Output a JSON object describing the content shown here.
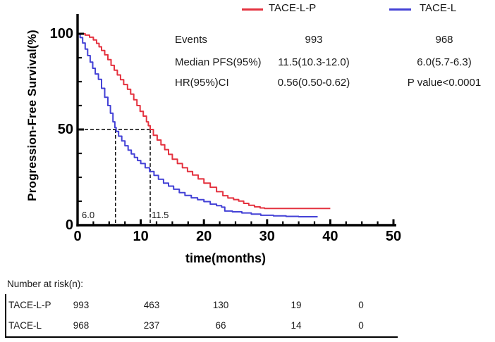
{
  "figure": {
    "background": "#ffffff"
  },
  "legend": {
    "items": [
      {
        "label": "TACE-L-P",
        "color": "#e4323f"
      },
      {
        "label": "TACE-L",
        "color": "#4341d6"
      }
    ]
  },
  "stats": {
    "rows": [
      {
        "label": "Events",
        "tace_l_p": "993",
        "tace_l": "968"
      },
      {
        "label": "Median PFS(95%)",
        "tace_l_p": "11.5(10.3-12.0)",
        "tace_l": "6.0(5.7-6.3)"
      },
      {
        "label": "HR(95%)CI",
        "tace_l_p": "0.56(0.50-0.62)",
        "tace_l": "P value<0.0001"
      }
    ]
  },
  "axes": {
    "xlabel": "time(months)",
    "ylabel": "Progression-Free Survival(%)",
    "xticks": [
      0,
      10,
      20,
      30,
      40,
      50
    ],
    "yticks": [
      0,
      50,
      100
    ],
    "x_minor_step": 2.5,
    "y_minor_step": 12.5,
    "xlim": [
      0,
      50
    ],
    "ylim": [
      0,
      100
    ]
  },
  "annotations": {
    "median_left": "6.0",
    "median_right": "11.5"
  },
  "risk_table": {
    "title": "Number at risk(n):",
    "rows": [
      {
        "label": "TACE-L-P",
        "values": [
          "993",
          "463",
          "130",
          "19",
          "0"
        ]
      },
      {
        "label": "TACE-L",
        "values": [
          "968",
          "237",
          "66",
          "14",
          "0"
        ]
      }
    ]
  },
  "chart_data": {
    "type": "line",
    "subtype": "kaplan-meier-step",
    "title": "",
    "xlabel": "time(months)",
    "ylabel": "Progression-Free Survival(%)",
    "xlim": [
      0,
      50
    ],
    "ylim": [
      0,
      100
    ],
    "xticks": [
      0,
      10,
      20,
      30,
      40,
      50
    ],
    "yticks": [
      0,
      50,
      100
    ],
    "grid": false,
    "legend_position": "top",
    "series": [
      {
        "name": "TACE-L-P",
        "color": "#e4323f",
        "events": 993,
        "median_pfs": "11.5(10.3-12.0)",
        "points": [
          [
            0,
            100
          ],
          [
            1.2,
            99.3
          ],
          [
            1.9,
            98.2
          ],
          [
            2.5,
            96.8
          ],
          [
            3,
            95
          ],
          [
            3.4,
            93.2
          ],
          [
            3.8,
            91.3
          ],
          [
            4.3,
            89
          ],
          [
            4.8,
            86.5
          ],
          [
            5.3,
            83.5
          ],
          [
            5.8,
            81
          ],
          [
            6.3,
            78.5
          ],
          [
            6.8,
            76
          ],
          [
            7.3,
            73.5
          ],
          [
            7.9,
            71
          ],
          [
            8.4,
            68.5
          ],
          [
            8.9,
            65.5
          ],
          [
            9.4,
            62.5
          ],
          [
            9.9,
            59.5
          ],
          [
            10.4,
            57
          ],
          [
            10.9,
            54
          ],
          [
            11.2,
            52
          ],
          [
            11.5,
            50
          ],
          [
            12,
            47
          ],
          [
            12.6,
            44.5
          ],
          [
            13.2,
            42
          ],
          [
            13.8,
            39.5
          ],
          [
            14.4,
            37
          ],
          [
            15,
            34.5
          ],
          [
            15.8,
            32.2
          ],
          [
            16.6,
            30
          ],
          [
            17.4,
            28
          ],
          [
            18.2,
            26.2
          ],
          [
            19.1,
            24.2
          ],
          [
            20,
            22
          ],
          [
            21,
            19.8
          ],
          [
            22,
            17.5
          ],
          [
            23,
            15.4
          ],
          [
            23.8,
            14.2
          ],
          [
            24.7,
            13.4
          ],
          [
            25.5,
            12.6
          ],
          [
            26.3,
            11.4
          ],
          [
            27.1,
            10.4
          ],
          [
            28,
            9.6
          ],
          [
            28.9,
            9
          ],
          [
            29.6,
            8.7
          ],
          [
            40,
            8.7
          ]
        ]
      },
      {
        "name": "TACE-L",
        "color": "#4341d6",
        "events": 968,
        "median_pfs": "6.0(5.7-6.3)",
        "points": [
          [
            0,
            100
          ],
          [
            0.4,
            98
          ],
          [
            0.8,
            95.2
          ],
          [
            1.2,
            92
          ],
          [
            1.6,
            88.6
          ],
          [
            2,
            85.2
          ],
          [
            2.4,
            82
          ],
          [
            2.8,
            79
          ],
          [
            3.3,
            76.2
          ],
          [
            3.8,
            71.5
          ],
          [
            4.3,
            66.8
          ],
          [
            4.8,
            62.5
          ],
          [
            5.2,
            58.5
          ],
          [
            5.6,
            54
          ],
          [
            5.9,
            51
          ],
          [
            6.1,
            49
          ],
          [
            6.5,
            46.5
          ],
          [
            7,
            44
          ],
          [
            7.5,
            41.5
          ],
          [
            8,
            39.2
          ],
          [
            8.5,
            37.2
          ],
          [
            9,
            35.4
          ],
          [
            9.5,
            33.8
          ],
          [
            10,
            32.2
          ],
          [
            10.7,
            30
          ],
          [
            11.4,
            28
          ],
          [
            12.1,
            26
          ],
          [
            12.8,
            24
          ],
          [
            13.6,
            22
          ],
          [
            14.4,
            20.4
          ],
          [
            15.2,
            18.8
          ],
          [
            16.1,
            17
          ],
          [
            17,
            15.5
          ],
          [
            18,
            14.3
          ],
          [
            19,
            13.3
          ],
          [
            20,
            12.3
          ],
          [
            21,
            11
          ],
          [
            22,
            10.2
          ],
          [
            22.8,
            9.4
          ],
          [
            23.3,
            7.4
          ],
          [
            24.5,
            7
          ],
          [
            26,
            6.4
          ],
          [
            27.5,
            5.8
          ],
          [
            29,
            5.2
          ],
          [
            31,
            4.9
          ],
          [
            33,
            4.6
          ],
          [
            35,
            4.4
          ],
          [
            38,
            4.4
          ]
        ]
      }
    ],
    "annotations": {
      "hr_ci": "0.56(0.50-0.62)",
      "p_value": "P value<0.0001",
      "median_lines": {
        "y": 50,
        "x_values": [
          6.0,
          11.5
        ]
      },
      "median_labels": [
        "6.0",
        "11.5"
      ]
    },
    "number_at_risk": {
      "TACE-L-P": [
        993,
        463,
        130,
        19,
        0
      ],
      "TACE-L": [
        968,
        237,
        66,
        14,
        0
      ]
    }
  }
}
